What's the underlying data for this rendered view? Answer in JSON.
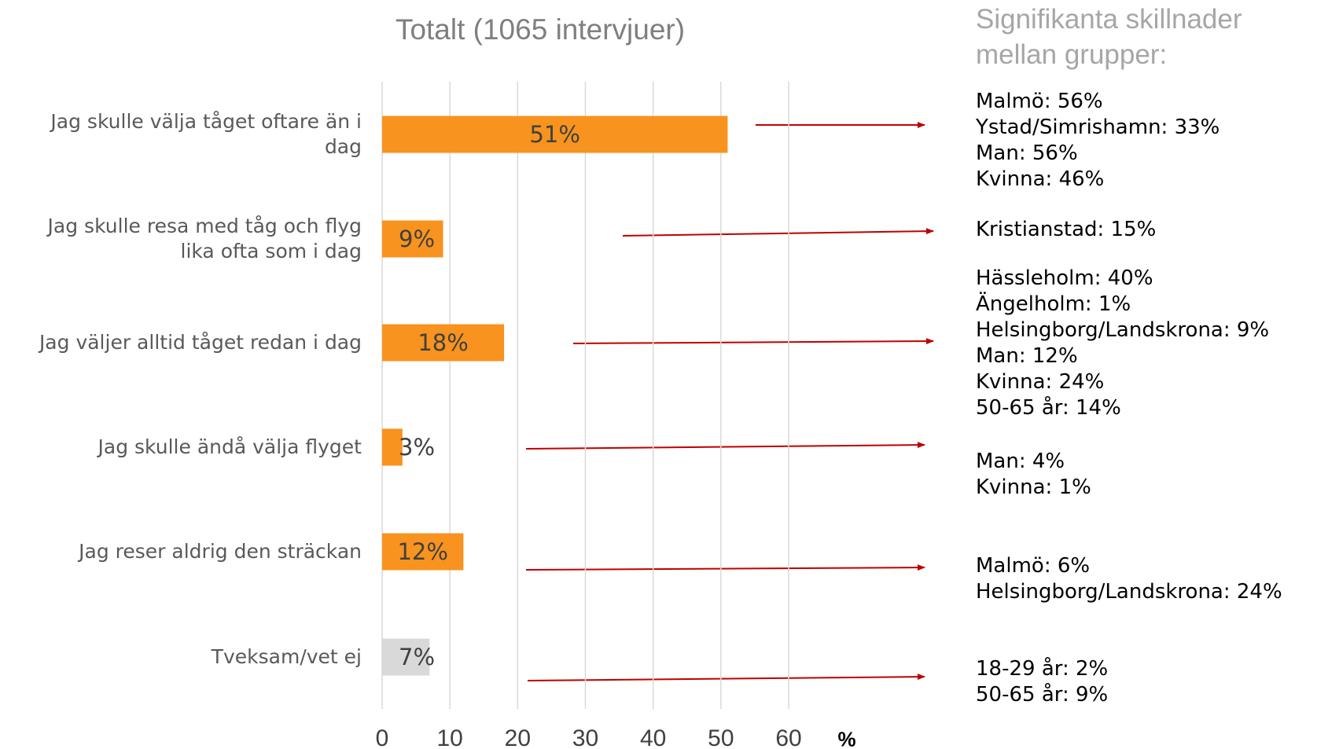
{
  "chart_data": {
    "type": "bar",
    "orientation": "horizontal",
    "title": "Totalt (1065 intervjuer)",
    "categories": [
      "Jag skulle välja tåget oftare än i\ndag",
      "Jag skulle resa med tåg och flyg\nlika ofta som i dag",
      "Jag väljer alltid tåget redan i dag",
      "Jag skulle ändå välja flyget",
      "Jag reser aldrig den sträckan",
      "Tveksam/vet ej"
    ],
    "values": [
      51,
      9,
      18,
      3,
      12,
      7
    ],
    "value_labels": [
      "51%",
      "9%",
      "18%",
      "3%",
      "12%",
      "7%"
    ],
    "colors": [
      "#f7931e",
      "#f7931e",
      "#f7931e",
      "#f7931e",
      "#f7931e",
      "#d9d9d9"
    ],
    "xlim": [
      0,
      60
    ],
    "xticks": [
      0,
      10,
      20,
      30,
      40,
      50,
      60
    ],
    "x_unit": "%",
    "grid": true,
    "annotation_title": "Signifikanta skillnader\nmellan grupper:",
    "annotations": [
      [
        "Malmö: 56%",
        "Ystad/Simrishamn: 33%",
        "Man: 56%",
        "Kvinna: 46%"
      ],
      [
        "Kristianstad: 15%"
      ],
      [
        "Hässleholm: 40%",
        "Ängelholm: 1%",
        "Helsingborg/Landskrona: 9%",
        "Man: 12%",
        "Kvinna: 24%",
        "50-65 år: 14%"
      ],
      [
        "Man: 4%",
        "Kvinna: 1%"
      ],
      [
        "Malmö: 6%",
        "Helsingborg/Landskrona: 24%"
      ],
      [
        "18-29 år: 2%",
        "50-65 år: 9%"
      ]
    ]
  }
}
